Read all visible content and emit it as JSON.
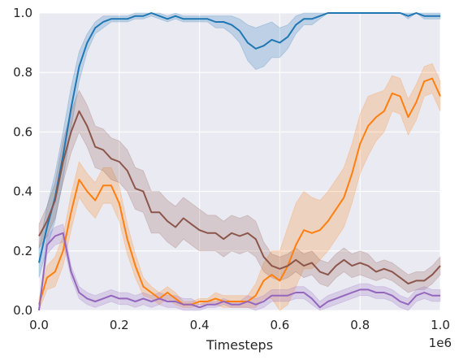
{
  "chart_data": {
    "type": "line",
    "xlabel": "Timesteps",
    "ylabel": "",
    "x_offset_text": "1e6",
    "xlim": [
      0.0,
      1.0
    ],
    "ylim": [
      0.0,
      1.0
    ],
    "x_ticks": [
      0.0,
      0.2,
      0.4,
      0.6,
      0.8,
      1.0
    ],
    "y_ticks": [
      0.0,
      0.2,
      0.4,
      0.6,
      0.8,
      1.0
    ],
    "x_tick_labels": [
      "0.0",
      "0.2",
      "0.4",
      "0.6",
      "0.8",
      "1.0"
    ],
    "y_tick_labels": [
      "0.0",
      "0.2",
      "0.4",
      "0.6",
      "0.8",
      "1.0"
    ],
    "grid": true,
    "background_color": "#eaeaf2",
    "grid_color": "#ffffff",
    "series": [
      {
        "color": "#1f77b4",
        "x": [
          0.0,
          0.02,
          0.04,
          0.06,
          0.08,
          0.1,
          0.12,
          0.14,
          0.16,
          0.18,
          0.2,
          0.22,
          0.24,
          0.26,
          0.28,
          0.3,
          0.32,
          0.34,
          0.36,
          0.38,
          0.4,
          0.42,
          0.44,
          0.46,
          0.48,
          0.5,
          0.52,
          0.54,
          0.56,
          0.58,
          0.6,
          0.62,
          0.64,
          0.66,
          0.68,
          0.7,
          0.72,
          0.74,
          0.76,
          0.78,
          0.8,
          0.82,
          0.84,
          0.86,
          0.88,
          0.9,
          0.92,
          0.94,
          0.96,
          0.98,
          1.0
        ],
        "y": [
          0.16,
          0.28,
          0.38,
          0.52,
          0.68,
          0.82,
          0.9,
          0.95,
          0.97,
          0.98,
          0.98,
          0.98,
          0.99,
          0.99,
          1.0,
          0.99,
          0.98,
          0.99,
          0.98,
          0.98,
          0.98,
          0.98,
          0.97,
          0.97,
          0.96,
          0.94,
          0.9,
          0.88,
          0.89,
          0.91,
          0.9,
          0.92,
          0.96,
          0.98,
          0.98,
          0.99,
          1.0,
          1.0,
          1.0,
          1.0,
          1.0,
          1.0,
          1.0,
          1.0,
          1.0,
          1.0,
          0.99,
          1.0,
          0.99,
          0.99,
          0.99
        ],
        "band": [
          0.05,
          0.07,
          0.08,
          0.08,
          0.07,
          0.05,
          0.03,
          0.02,
          0.02,
          0.01,
          0.01,
          0.01,
          0.01,
          0.01,
          0.01,
          0.01,
          0.01,
          0.01,
          0.01,
          0.01,
          0.01,
          0.01,
          0.02,
          0.02,
          0.03,
          0.04,
          0.06,
          0.07,
          0.07,
          0.06,
          0.05,
          0.04,
          0.03,
          0.02,
          0.02,
          0.01,
          0.0,
          0.0,
          0.0,
          0.0,
          0.0,
          0.0,
          0.0,
          0.0,
          0.0,
          0.0,
          0.01,
          0.0,
          0.01,
          0.01,
          0.01
        ]
      },
      {
        "color": "#ff7f0e",
        "x": [
          0.0,
          0.02,
          0.04,
          0.06,
          0.08,
          0.1,
          0.12,
          0.14,
          0.16,
          0.18,
          0.2,
          0.22,
          0.24,
          0.26,
          0.28,
          0.3,
          0.32,
          0.34,
          0.36,
          0.38,
          0.4,
          0.42,
          0.44,
          0.46,
          0.48,
          0.5,
          0.52,
          0.54,
          0.56,
          0.58,
          0.6,
          0.62,
          0.64,
          0.66,
          0.68,
          0.7,
          0.72,
          0.74,
          0.76,
          0.78,
          0.8,
          0.82,
          0.84,
          0.86,
          0.88,
          0.9,
          0.92,
          0.94,
          0.96,
          0.98,
          1.0
        ],
        "y": [
          0.02,
          0.11,
          0.13,
          0.2,
          0.33,
          0.44,
          0.4,
          0.37,
          0.42,
          0.42,
          0.36,
          0.24,
          0.15,
          0.08,
          0.06,
          0.04,
          0.06,
          0.04,
          0.02,
          0.02,
          0.03,
          0.03,
          0.04,
          0.03,
          0.03,
          0.03,
          0.03,
          0.05,
          0.1,
          0.12,
          0.1,
          0.15,
          0.22,
          0.27,
          0.26,
          0.27,
          0.3,
          0.34,
          0.38,
          0.46,
          0.56,
          0.62,
          0.65,
          0.67,
          0.73,
          0.72,
          0.65,
          0.7,
          0.77,
          0.78,
          0.72
        ],
        "band": [
          0.02,
          0.04,
          0.05,
          0.05,
          0.06,
          0.06,
          0.06,
          0.06,
          0.06,
          0.06,
          0.06,
          0.05,
          0.04,
          0.03,
          0.02,
          0.02,
          0.02,
          0.02,
          0.01,
          0.01,
          0.01,
          0.01,
          0.02,
          0.02,
          0.02,
          0.02,
          0.02,
          0.04,
          0.06,
          0.08,
          0.1,
          0.13,
          0.14,
          0.13,
          0.12,
          0.1,
          0.1,
          0.1,
          0.1,
          0.1,
          0.1,
          0.1,
          0.08,
          0.07,
          0.06,
          0.06,
          0.06,
          0.06,
          0.05,
          0.05,
          0.05
        ]
      },
      {
        "color": "#8c564b",
        "x": [
          0.0,
          0.02,
          0.04,
          0.06,
          0.08,
          0.1,
          0.12,
          0.14,
          0.16,
          0.18,
          0.2,
          0.22,
          0.24,
          0.26,
          0.28,
          0.3,
          0.32,
          0.34,
          0.36,
          0.38,
          0.4,
          0.42,
          0.44,
          0.46,
          0.48,
          0.5,
          0.52,
          0.54,
          0.56,
          0.58,
          0.6,
          0.62,
          0.64,
          0.66,
          0.68,
          0.7,
          0.72,
          0.74,
          0.76,
          0.78,
          0.8,
          0.82,
          0.84,
          0.86,
          0.88,
          0.9,
          0.92,
          0.94,
          0.96,
          0.98,
          1.0
        ],
        "y": [
          0.25,
          0.3,
          0.37,
          0.5,
          0.6,
          0.67,
          0.62,
          0.55,
          0.54,
          0.51,
          0.5,
          0.47,
          0.41,
          0.4,
          0.33,
          0.33,
          0.3,
          0.28,
          0.31,
          0.29,
          0.27,
          0.26,
          0.26,
          0.24,
          0.26,
          0.25,
          0.26,
          0.24,
          0.18,
          0.15,
          0.14,
          0.15,
          0.17,
          0.15,
          0.16,
          0.13,
          0.12,
          0.15,
          0.17,
          0.15,
          0.16,
          0.15,
          0.13,
          0.14,
          0.13,
          0.11,
          0.09,
          0.1,
          0.1,
          0.12,
          0.15
        ],
        "band": [
          0.04,
          0.05,
          0.06,
          0.07,
          0.07,
          0.07,
          0.07,
          0.07,
          0.07,
          0.07,
          0.07,
          0.07,
          0.07,
          0.07,
          0.07,
          0.07,
          0.07,
          0.07,
          0.07,
          0.07,
          0.07,
          0.06,
          0.06,
          0.06,
          0.06,
          0.06,
          0.06,
          0.06,
          0.05,
          0.04,
          0.04,
          0.04,
          0.04,
          0.04,
          0.04,
          0.04,
          0.04,
          0.04,
          0.04,
          0.04,
          0.04,
          0.04,
          0.03,
          0.03,
          0.03,
          0.03,
          0.03,
          0.03,
          0.03,
          0.03,
          0.03
        ]
      },
      {
        "color": "#9467bd",
        "x": [
          0.0,
          0.02,
          0.04,
          0.06,
          0.08,
          0.1,
          0.12,
          0.14,
          0.16,
          0.18,
          0.2,
          0.22,
          0.24,
          0.26,
          0.28,
          0.3,
          0.32,
          0.34,
          0.36,
          0.38,
          0.4,
          0.42,
          0.44,
          0.46,
          0.48,
          0.5,
          0.52,
          0.54,
          0.56,
          0.58,
          0.6,
          0.62,
          0.64,
          0.66,
          0.68,
          0.7,
          0.72,
          0.74,
          0.76,
          0.78,
          0.8,
          0.82,
          0.84,
          0.86,
          0.88,
          0.9,
          0.92,
          0.94,
          0.96,
          0.98,
          1.0
        ],
        "y": [
          0.0,
          0.22,
          0.25,
          0.26,
          0.13,
          0.06,
          0.04,
          0.03,
          0.04,
          0.05,
          0.04,
          0.04,
          0.03,
          0.04,
          0.03,
          0.04,
          0.03,
          0.03,
          0.02,
          0.02,
          0.01,
          0.02,
          0.02,
          0.03,
          0.02,
          0.02,
          0.03,
          0.02,
          0.03,
          0.05,
          0.05,
          0.05,
          0.06,
          0.06,
          0.04,
          0.01,
          0.03,
          0.04,
          0.05,
          0.06,
          0.07,
          0.07,
          0.06,
          0.06,
          0.05,
          0.03,
          0.02,
          0.05,
          0.06,
          0.05,
          0.05
        ],
        "band": [
          0.0,
          0.03,
          0.03,
          0.03,
          0.02,
          0.02,
          0.02,
          0.02,
          0.02,
          0.02,
          0.02,
          0.02,
          0.02,
          0.02,
          0.02,
          0.02,
          0.02,
          0.02,
          0.02,
          0.02,
          0.01,
          0.01,
          0.01,
          0.01,
          0.01,
          0.01,
          0.02,
          0.02,
          0.02,
          0.02,
          0.02,
          0.02,
          0.02,
          0.02,
          0.02,
          0.02,
          0.02,
          0.02,
          0.02,
          0.02,
          0.02,
          0.02,
          0.02,
          0.02,
          0.02,
          0.02,
          0.02,
          0.02,
          0.02,
          0.02,
          0.02
        ]
      }
    ]
  }
}
